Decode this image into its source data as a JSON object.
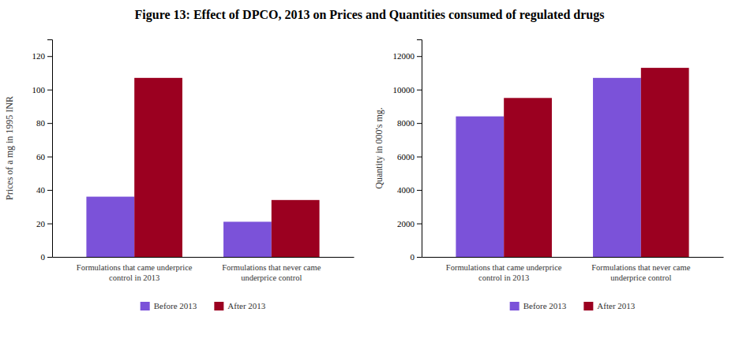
{
  "title": "Figure 13: Effect of DPCO, 2013 on Prices and Quantities consumed of regulated drugs",
  "chart_data": [
    {
      "type": "bar",
      "ylabel": "Prices of a mg in 1995 INR",
      "categories": [
        "Formulations that came underprice\ncontrol in 2013",
        "Formulations that never came\nunderprice control"
      ],
      "series": [
        {
          "name": "Before 2013",
          "color": "#7B52D9",
          "values": [
            36,
            21
          ]
        },
        {
          "name": "After 2013",
          "color": "#9B0020",
          "values": [
            107,
            34
          ]
        }
      ],
      "ylim": [
        0,
        130
      ],
      "yticks": [
        0,
        20,
        40,
        60,
        80,
        100,
        120
      ],
      "grid": false,
      "legend": "bottom"
    },
    {
      "type": "bar",
      "ylabel": "Quantity in 000's mg.",
      "categories": [
        "Formulations that came underprice\ncontrol in 2013",
        "Formulations that never came\nunderprice control"
      ],
      "series": [
        {
          "name": "Before 2013",
          "color": "#7B52D9",
          "values": [
            8400,
            10700
          ]
        },
        {
          "name": "After 2013",
          "color": "#9B0020",
          "values": [
            9500,
            11300
          ]
        }
      ],
      "ylim": [
        0,
        13000
      ],
      "yticks": [
        0,
        2000,
        4000,
        6000,
        8000,
        10000,
        12000
      ],
      "grid": false,
      "legend": "bottom"
    }
  ]
}
